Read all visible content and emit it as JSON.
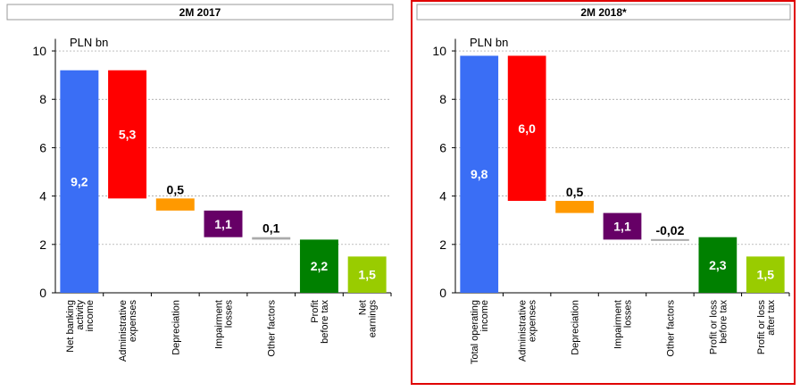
{
  "chart_data": [
    {
      "type": "waterfall",
      "title": "2M 2017",
      "unit_label": "PLN bn",
      "categories": [
        [
          "Net banking",
          "activity",
          "income"
        ],
        [
          "Administrative",
          "expenses"
        ],
        [
          "Depreciation"
        ],
        [
          "Impairment",
          "losses"
        ],
        [
          "Other factors"
        ],
        [
          "Profit",
          "before tax"
        ],
        [
          "Net",
          "earnings"
        ]
      ],
      "values": [
        9.2,
        5.3,
        0.5,
        1.1,
        0.1,
        2.2,
        1.5
      ],
      "value_labels": [
        "9,2",
        "5,3",
        "0,5",
        "1,1",
        "0,1",
        "2,2",
        "1,5"
      ],
      "measure": [
        "total",
        "decrease",
        "decrease",
        "decrease",
        "decrease",
        "total",
        "total"
      ],
      "colors": [
        "#3a6ef5",
        "#ff0000",
        "#ff9900",
        "#660066",
        "#aaaaaa",
        "#008000",
        "#99cc00"
      ],
      "ylim": [
        0,
        10.5
      ],
      "yticks": [
        0,
        2,
        4,
        6,
        8,
        10
      ],
      "grid": true
    },
    {
      "type": "waterfall",
      "title": "2M 2018*",
      "unit_label": "PLN bn",
      "categories": [
        [
          "Total operating",
          "income"
        ],
        [
          "Administrative",
          "expenses"
        ],
        [
          "Depreciation"
        ],
        [
          "Impairment",
          "losses"
        ],
        [
          "Other factors"
        ],
        [
          "Profit or loss",
          "before tax"
        ],
        [
          "Profit or loss",
          "after tax"
        ]
      ],
      "values": [
        9.8,
        6.0,
        0.5,
        1.1,
        -0.02,
        2.3,
        1.5
      ],
      "value_labels": [
        "9,8",
        "6,0",
        "0,5",
        "1,1",
        "-0,02",
        "2,3",
        "1,5"
      ],
      "measure": [
        "total",
        "decrease",
        "decrease",
        "decrease",
        "decrease",
        "total",
        "total"
      ],
      "colors": [
        "#3a6ef5",
        "#ff0000",
        "#ff9900",
        "#660066",
        "#aaaaaa",
        "#008000",
        "#99cc00"
      ],
      "ylim": [
        0,
        10.5
      ],
      "yticks": [
        0,
        2,
        4,
        6,
        8,
        10
      ],
      "grid": true
    }
  ]
}
